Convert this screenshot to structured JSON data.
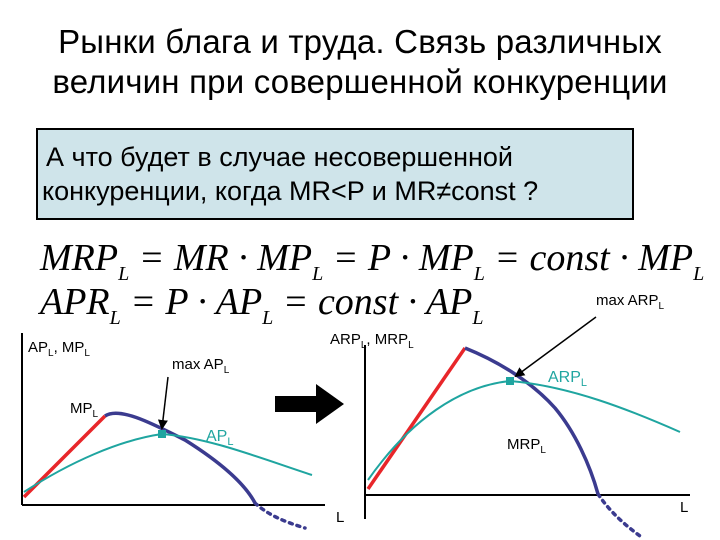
{
  "title": {
    "line1": "Рынки блага и труда. Связь различных",
    "line2": "величин при совершенной конкуренции"
  },
  "question": {
    "line1": "А что будет в случае несовершенной",
    "line2": "конкуренции, когда MR<P и MR≠const ?"
  },
  "formulas": {
    "line1_parts": [
      "MRP",
      "L",
      " = MR · MP",
      "L",
      " = P · MP",
      "L",
      " = const · MP",
      "L"
    ],
    "line2_parts": [
      "APR",
      "L",
      " = P · AP",
      "L",
      " = const · AP",
      "L"
    ]
  },
  "left_chart": {
    "axis_label_main": "AP",
    "axis_label_sub": "L",
    "axis_label_main2": ", MP",
    "axis_label_sub2": "L",
    "x_label": "L",
    "annot_max_main": "max AP",
    "annot_max_sub": "L",
    "mp_main": "MP",
    "mp_sub": "L",
    "ap_main": "AP",
    "ap_sub": "L"
  },
  "right_chart": {
    "axis_label_main": "ARP",
    "axis_label_sub": "L",
    "axis_label_main2": ", MRP",
    "axis_label_sub2": "L",
    "x_label": "L",
    "annot_max_main": "max ARP",
    "annot_max_sub": "L",
    "arp_main": "ARP",
    "arp_sub": "L",
    "mrp_main": "MRP",
    "mrp_sub": "L"
  },
  "colors": {
    "question_bg": "#cfe4ea",
    "rising_segment": "#e8262a",
    "falling_curve": "#3b3b8f",
    "average_curve": "#1fa5a0",
    "arrow": "#000000"
  }
}
